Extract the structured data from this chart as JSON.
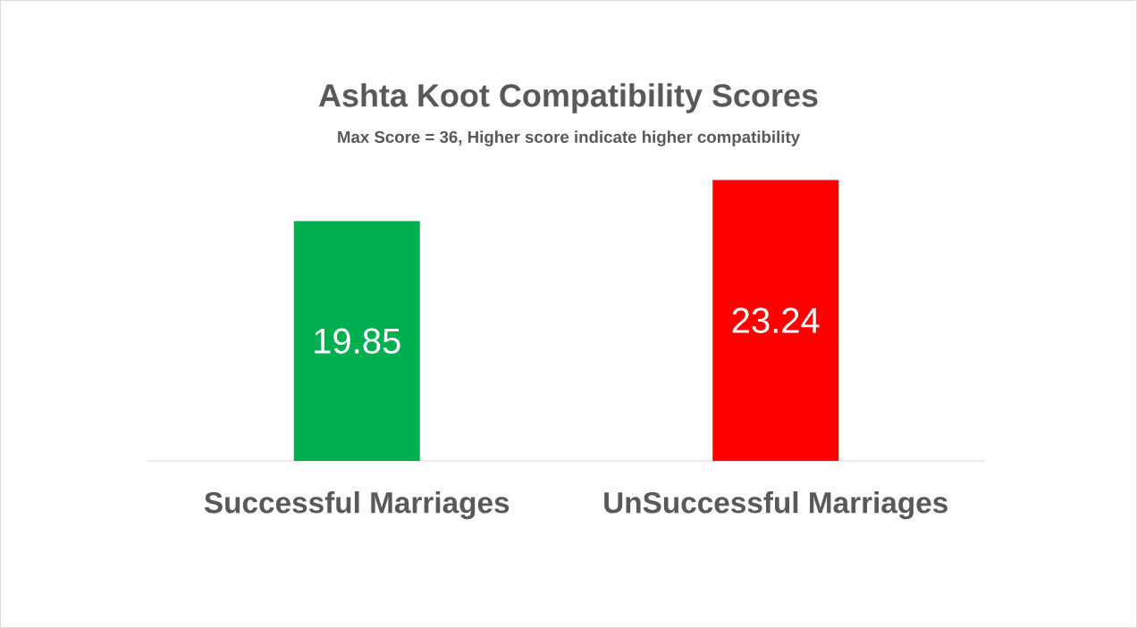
{
  "chart_data": {
    "type": "bar",
    "title": "Ashta Koot Compatibility Scores",
    "subtitle": "Max Score = 36, Higher score indicate higher compatibility",
    "categories": [
      "Successful Marriages",
      "UnSuccessful Marriages"
    ],
    "values": [
      19.85,
      23.24
    ],
    "colors": [
      "#00b050",
      "#ff0000"
    ],
    "data_labels": true,
    "tick_labels": "x"
  }
}
